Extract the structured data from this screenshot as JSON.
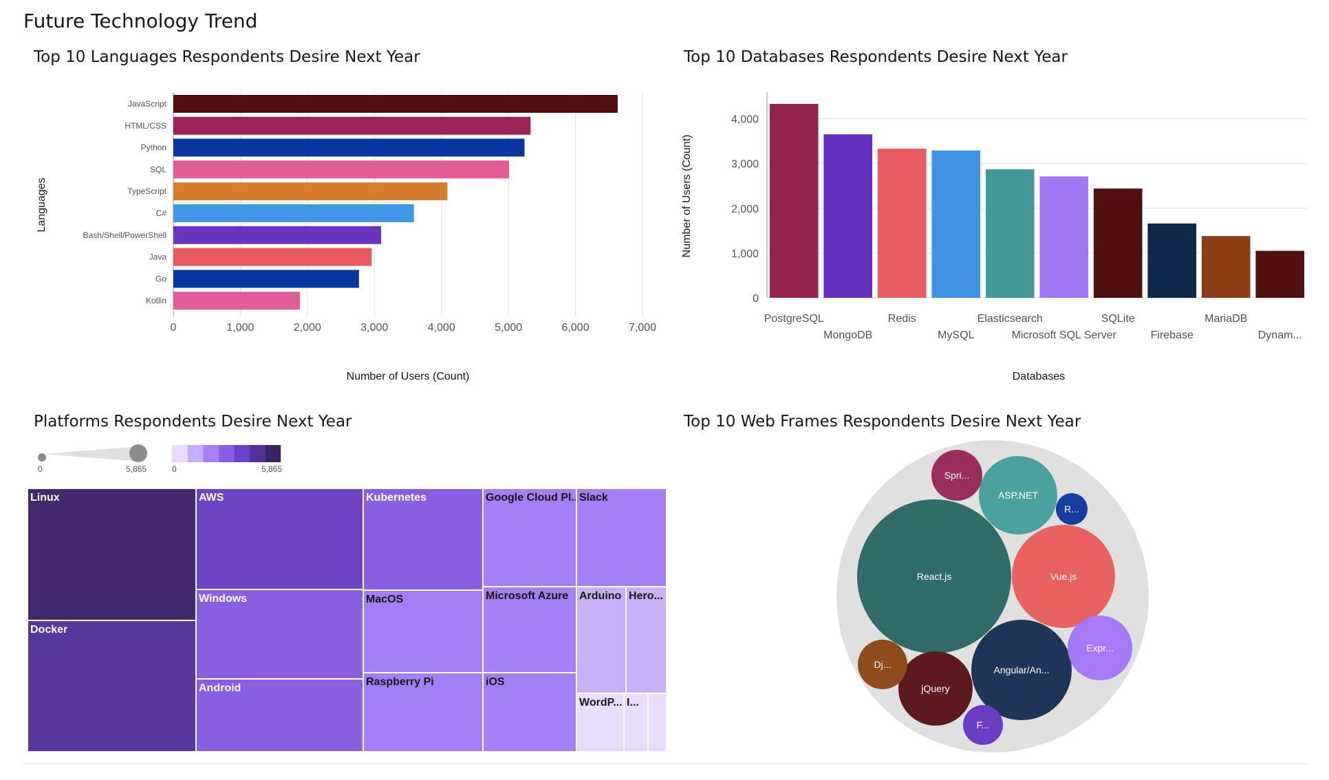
{
  "page": {
    "title": "Future Technology Trend"
  },
  "chart_data": [
    {
      "id": "languages",
      "type": "bar",
      "orientation": "horizontal",
      "title": "Top 10 Languages Respondents Desire Next Year",
      "xlabel": "Number of Users (Count)",
      "ylabel": "Languages",
      "xlim": [
        0,
        7000
      ],
      "xticks": [
        "0",
        "1,000",
        "2,000",
        "3,000",
        "4,000",
        "5,000",
        "6,000",
        "7,000"
      ],
      "grid": true,
      "categories": [
        "JavaScript",
        "HTML/CSS",
        "Python",
        "SQL",
        "TypeScript",
        "C#",
        "Bash/Shell/PowerShell",
        "Java",
        "Go",
        "Kotlin"
      ],
      "values": [
        6630,
        5330,
        5240,
        5010,
        4090,
        3590,
        3100,
        2960,
        2770,
        1890
      ],
      "colors": [
        "#520f10",
        "#9b2458",
        "#0b35a0",
        "#e25d98",
        "#d47f2f",
        "#4196e6",
        "#6933be",
        "#e75a5d",
        "#0b35a0",
        "#e25d98"
      ]
    },
    {
      "id": "databases",
      "type": "bar",
      "orientation": "vertical",
      "title": "Top 10 Databases Respondents Desire Next Year",
      "xlabel": "Databases",
      "ylabel": "Number of Users (Count)",
      "ylim": [
        0,
        4500
      ],
      "yticks": [
        "0",
        "1,000",
        "2,000",
        "3,000",
        "4,000"
      ],
      "grid": true,
      "categories": [
        "PostgreSQL",
        "MongoDB",
        "Redis",
        "MySQL",
        "Elasticsearch",
        "Microsoft SQL Server",
        "SQLite",
        "Firebase",
        "MariaDB",
        "Dynam..."
      ],
      "values": [
        4330,
        3650,
        3330,
        3290,
        2870,
        2710,
        2440,
        1660,
        1380,
        1050
      ],
      "colors": [
        "#93254f",
        "#6530bf",
        "#e75b5d",
        "#4194e4",
        "#41999a",
        "#a176f3",
        "#520f10",
        "#0d2a4a",
        "#8c3f17",
        "#520f10"
      ]
    },
    {
      "id": "platforms",
      "type": "treemap",
      "title": "Platforms Respondents Desire Next Year",
      "size_legend": {
        "min_label": "0",
        "max_label": "5,865"
      },
      "color_legend": {
        "min_label": "0",
        "max_label": "5,865",
        "colors": [
          "#e8dcfd",
          "#c7aefa",
          "#a780f7",
          "#8a5ce8",
          "#6e3ecd",
          "#533099",
          "#3a2463"
        ]
      },
      "items": [
        {
          "name": "Linux",
          "color": "#432a6a",
          "text": "#ffffff"
        },
        {
          "name": "Docker",
          "color": "#57379b",
          "text": "#ffffff"
        },
        {
          "name": "AWS",
          "color": "#6e44c5",
          "text": "#ffffff"
        },
        {
          "name": "Windows",
          "color": "#8a5ee0",
          "text": "#ffffff"
        },
        {
          "name": "Android",
          "color": "#8a5ee0",
          "text": "#ffffff"
        },
        {
          "name": "Kubernetes",
          "color": "#8a5ee0",
          "text": "#ffffff"
        },
        {
          "name": "MacOS",
          "color": "#a47ef4",
          "text": "#161616"
        },
        {
          "name": "Raspberry Pi",
          "color": "#a47ef4",
          "text": "#161616"
        },
        {
          "name": "Google Cloud Pl...",
          "color": "#a47ef4",
          "text": "#161616"
        },
        {
          "name": "Microsoft Azure",
          "color": "#a47ef4",
          "text": "#161616"
        },
        {
          "name": "iOS",
          "color": "#a47ef4",
          "text": "#161616"
        },
        {
          "name": "Slack",
          "color": "#a47ef4",
          "text": "#161616"
        },
        {
          "name": "Arduino",
          "color": "#c7b0f8",
          "text": "#161616"
        },
        {
          "name": "Hero...",
          "color": "#c7b0f8",
          "text": "#161616"
        },
        {
          "name": "WordP...",
          "color": "#e8ddfc",
          "text": "#161616"
        },
        {
          "name": "I...",
          "color": "#e8ddfc",
          "text": "#161616"
        },
        {
          "name": "",
          "color": "#e8ddfc",
          "text": "#161616"
        }
      ]
    },
    {
      "id": "webframes",
      "type": "bubble",
      "title": "Top 10 Web Frames Respondents Desire Next Year",
      "items": [
        {
          "name": "React.js",
          "color": "#2f6b69"
        },
        {
          "name": "Vue.js",
          "color": "#e8635f"
        },
        {
          "name": "Angular/An...",
          "color": "#1d3556"
        },
        {
          "name": "ASP.NET",
          "color": "#4aa19e"
        },
        {
          "name": "jQuery",
          "color": "#5c1a1e"
        },
        {
          "name": "Expr...",
          "color": "#a579f5"
        },
        {
          "name": "Spri...",
          "color": "#9b2d5c"
        },
        {
          "name": "Dj...",
          "color": "#8f4a1d"
        },
        {
          "name": "F...",
          "color": "#6a3cc4"
        },
        {
          "name": "R...",
          "color": "#163ea0"
        }
      ]
    }
  ]
}
